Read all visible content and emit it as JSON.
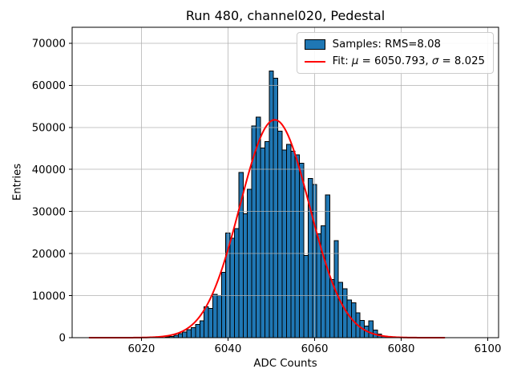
{
  "figure": {
    "title": "Run 480, channel020, Pedestal",
    "xlabel": "ADC Counts",
    "ylabel": "Entries"
  },
  "legend": {
    "position": "upper right",
    "samples_label": "Samples: RMS=8.08",
    "fit_prefix": "Fit: ",
    "mu_symbol": "μ",
    "mu_value": " = 6050.793, ",
    "sigma_symbol": "σ",
    "sigma_value": " = 8.025"
  },
  "chart_data": {
    "type": "bar",
    "subtype": "histogram-with-gaussian-fit",
    "title": "Run 480, channel020, Pedestal",
    "xlabel": "ADC Counts",
    "ylabel": "Entries",
    "grid": true,
    "xlim": [
      6004,
      6102.5
    ],
    "ylim": [
      0,
      73800
    ],
    "xticks": [
      6020,
      6040,
      6060,
      6080,
      6100
    ],
    "yticks": [
      0,
      10000,
      20000,
      30000,
      40000,
      50000,
      60000,
      70000
    ],
    "bin_width": 1,
    "bins": [
      6026,
      6027,
      6028,
      6029,
      6030,
      6031,
      6032,
      6033,
      6034,
      6035,
      6036,
      6037,
      6038,
      6039,
      6040,
      6041,
      6042,
      6043,
      6044,
      6045,
      6046,
      6047,
      6048,
      6049,
      6050,
      6051,
      6052,
      6053,
      6054,
      6055,
      6056,
      6057,
      6058,
      6059,
      6060,
      6061,
      6062,
      6063,
      6064,
      6065,
      6066,
      6067,
      6068,
      6069,
      6070,
      6071,
      6072,
      6073,
      6074,
      6075,
      6076
    ],
    "counts": [
      150,
      300,
      600,
      950,
      1350,
      1900,
      2400,
      3100,
      4000,
      7300,
      7000,
      10300,
      10000,
      15500,
      24900,
      23600,
      25900,
      39300,
      29500,
      35300,
      50300,
      52400,
      45100,
      46600,
      63400,
      61700,
      49100,
      44600,
      46000,
      44300,
      43500,
      41500,
      19500,
      37900,
      36400,
      24700,
      26600,
      33900,
      13800,
      23100,
      13200,
      11600,
      9000,
      8300,
      5900,
      4100,
      2800,
      4000,
      1800,
      900,
      400
    ],
    "series_label": "Samples: RMS=8.08",
    "stats": {
      "rms": 8.08
    },
    "fit": {
      "label": "Fit: μ = 6050.793, σ = 8.025",
      "mu": 6050.793,
      "sigma": 8.025,
      "amplitude": 51800,
      "x_range": [
        6008,
        6090
      ]
    },
    "colors": {
      "bar_fill": "#1f77b4",
      "bar_edge": "#000000",
      "fit_line": "#ff0000",
      "grid": "#b0b0b0",
      "spine": "#000000",
      "background": "#ffffff"
    }
  }
}
